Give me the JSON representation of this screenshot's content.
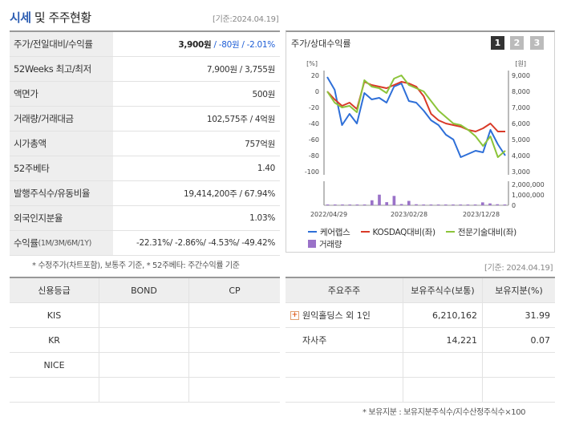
{
  "header": {
    "title_main": "시세",
    "title_rest": " 및 주주현황",
    "base_date": "[기준:2024.04.19]"
  },
  "market": {
    "rows": [
      {
        "label": "주가/전일대비/수익률",
        "price": "3,900원",
        "change": " / -80원 / -2.01%"
      },
      {
        "label": "52Weeks 최고/최저",
        "value": "7,900원 / 3,755원"
      },
      {
        "label": "액면가",
        "value": "500원"
      },
      {
        "label": "거래량/거래대금",
        "value": "102,575주 / 4억원"
      },
      {
        "label": "시가총액",
        "value": "757억원"
      },
      {
        "label": "52주베타",
        "value": "1.40"
      },
      {
        "label": "발행주식수/유동비율",
        "value": "19,414,200주 / 67.94%"
      },
      {
        "label": "외국인지분율",
        "value": "1.03%"
      },
      {
        "label": "수익률",
        "label_small": " (1M/3M/6M/1Y)",
        "value": "-22.31%/ -2.86%/ -4.53%/ -49.42%"
      }
    ],
    "note": "* 수정주가(차트포함), 보통주 기준, * 52주베타: 주간수익률 기준"
  },
  "chart_panel": {
    "title": "주가/상대수익률",
    "pages": [
      "1",
      "2",
      "3"
    ],
    "base_date": "[기준: 2024.04.19]"
  },
  "chart_data": {
    "type": "line",
    "left_unit": "[%]",
    "right_unit": "[원]",
    "left_ticks": [
      "20",
      "0",
      "-20",
      "-40",
      "-60",
      "-80",
      "-100"
    ],
    "right_ticks": [
      "9,000",
      "8,000",
      "7,000",
      "6,000",
      "5,000",
      "4,000",
      "3,000"
    ],
    "volume_ticks": [
      "2,000,000",
      "1,000,000",
      "0"
    ],
    "x_labels": [
      "2022/04/29",
      "2023/02/28",
      "2023/12/28"
    ],
    "ylim_left": [
      -100,
      20
    ],
    "ylim_right": [
      3000,
      9000
    ],
    "series": [
      {
        "name": "케어랩스",
        "color": "#2e6fd8",
        "values": [
          18,
          2,
          -42,
          -28,
          -40,
          -2,
          -10,
          -8,
          -14,
          6,
          10,
          -12,
          -14,
          -24,
          -36,
          -42,
          -54,
          -60,
          -82,
          -78,
          -74,
          -76,
          -48,
          -66,
          -80
        ]
      },
      {
        "name": "KOSDAQ대비(좌)",
        "color": "#d93a28",
        "values": [
          0,
          -10,
          -18,
          -14,
          -22,
          12,
          8,
          6,
          4,
          8,
          12,
          10,
          6,
          -6,
          -28,
          -36,
          -40,
          -42,
          -44,
          -48,
          -50,
          -46,
          -40,
          -50,
          -50
        ]
      },
      {
        "name": "전문기술대비(좌)",
        "color": "#8cc43a",
        "values": [
          0,
          -14,
          -20,
          -18,
          -26,
          14,
          6,
          4,
          -2,
          16,
          20,
          8,
          4,
          0,
          -12,
          -24,
          -32,
          -40,
          -42,
          -48,
          -56,
          -68,
          -56,
          -82,
          -74
        ]
      }
    ],
    "volume": {
      "name": "거래량",
      "color": "#9a72c8",
      "values": [
        0.03,
        0.02,
        0.02,
        0.02,
        0.04,
        0.05,
        0.48,
        1.02,
        0.3,
        0.9,
        0.12,
        0.42,
        0.1,
        0.04,
        0.05,
        0.02,
        0.04,
        0.02,
        0.03,
        0.02,
        0.04,
        0.28,
        0.18,
        0.1,
        0.05
      ]
    }
  },
  "credit": {
    "headers": [
      "신용등급",
      "BOND",
      "CP"
    ],
    "rows": [
      {
        "agency": "KIS",
        "bond": "",
        "cp": ""
      },
      {
        "agency": "KR",
        "bond": "",
        "cp": ""
      },
      {
        "agency": "NICE",
        "bond": "",
        "cp": ""
      },
      {
        "agency": "",
        "bond": "",
        "cp": ""
      }
    ]
  },
  "holders": {
    "headers": [
      "주요주주",
      "보유주식수(보통)",
      "보유지분(%)"
    ],
    "rows": [
      {
        "name": "원익홀딩스 외 1인",
        "shares": "6,210,162",
        "pct": "31.99",
        "expandable": true
      },
      {
        "name": "자사주",
        "shares": "14,221",
        "pct": "0.07",
        "expandable": false
      },
      {
        "name": "",
        "shares": "",
        "pct": ""
      },
      {
        "name": "",
        "shares": "",
        "pct": ""
      }
    ],
    "note": "* 보유지분 : 보유지분주식수/지수산정주식수×100"
  }
}
